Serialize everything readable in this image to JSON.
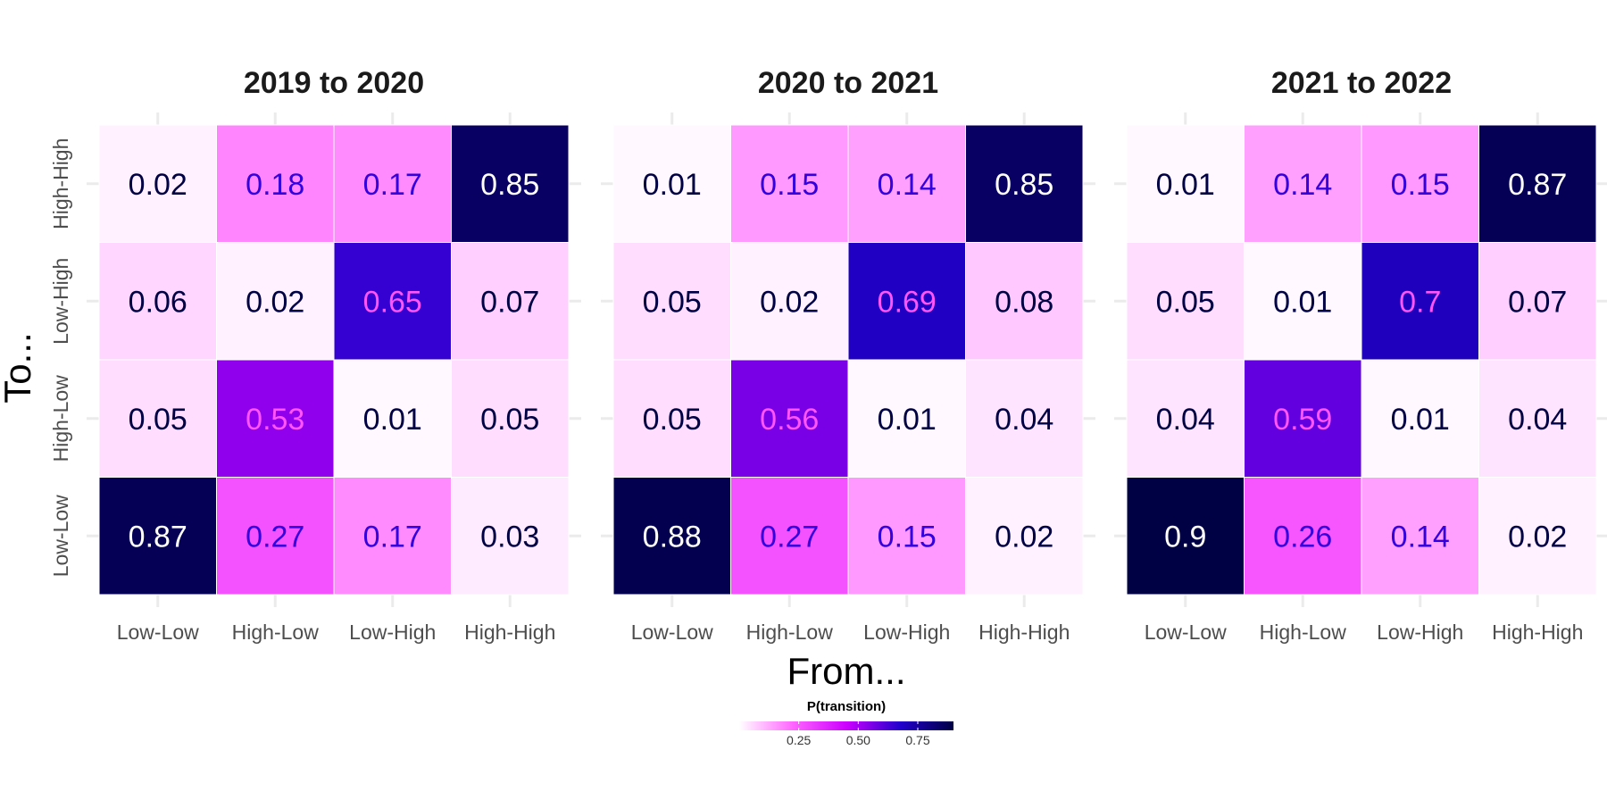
{
  "chart_data": {
    "type": "heatmap",
    "xlabel": "From...",
    "ylabel": "To...",
    "categories": [
      "Low-Low",
      "High-Low",
      "Low-High",
      "High-High"
    ],
    "y_categories_bottom_to_top": [
      "Low-Low",
      "High-Low",
      "Low-High",
      "High-High"
    ],
    "legend": {
      "title": "P(transition)",
      "ticks": [
        0.25,
        0.5,
        0.75
      ],
      "tick_labels": [
        "0.25",
        "0.50",
        "0.75"
      ],
      "range": [
        0,
        0.9
      ],
      "colors": [
        "#ffffff",
        "#ff66ff",
        "#cc00ff",
        "#2200cc",
        "#000044"
      ],
      "placement": "bottom"
    },
    "grid": true,
    "panels": [
      {
        "title": "2019 to 2020",
        "rows": [
          {
            "to": "High-High",
            "values": [
              0.02,
              0.18,
              0.17,
              0.85
            ]
          },
          {
            "to": "Low-High",
            "values": [
              0.06,
              0.02,
              0.65,
              0.07
            ]
          },
          {
            "to": "High-Low",
            "values": [
              0.05,
              0.53,
              0.01,
              0.05
            ]
          },
          {
            "to": "Low-Low",
            "values": [
              0.87,
              0.27,
              0.17,
              0.03
            ]
          }
        ]
      },
      {
        "title": "2020 to 2021",
        "rows": [
          {
            "to": "High-High",
            "values": [
              0.01,
              0.15,
              0.14,
              0.85
            ]
          },
          {
            "to": "Low-High",
            "values": [
              0.05,
              0.02,
              0.69,
              0.08
            ]
          },
          {
            "to": "High-Low",
            "values": [
              0.05,
              0.56,
              0.01,
              0.04
            ]
          },
          {
            "to": "Low-Low",
            "values": [
              0.88,
              0.27,
              0.15,
              0.02
            ]
          }
        ]
      },
      {
        "title": "2021 to 2022",
        "rows": [
          {
            "to": "High-High",
            "values": [
              0.01,
              0.14,
              0.15,
              0.87
            ]
          },
          {
            "to": "Low-High",
            "values": [
              0.05,
              0.01,
              0.7,
              0.07
            ]
          },
          {
            "to": "High-Low",
            "values": [
              0.04,
              0.59,
              0.01,
              0.04
            ]
          },
          {
            "to": "Low-Low",
            "values": [
              0.9,
              0.26,
              0.14,
              0.02
            ]
          }
        ]
      }
    ]
  }
}
